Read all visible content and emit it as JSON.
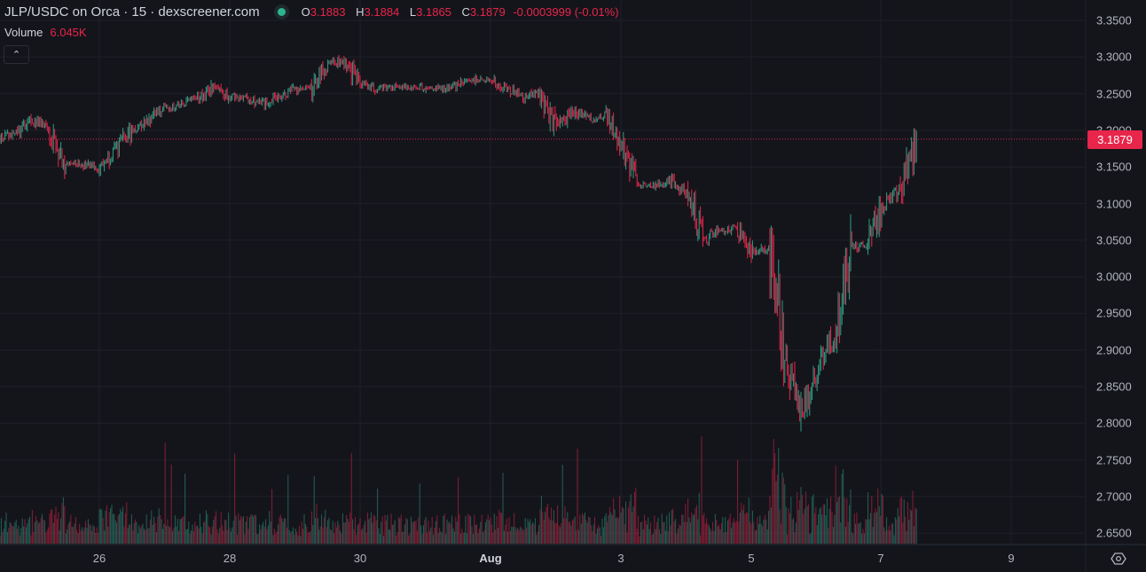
{
  "header": {
    "title": "JLP/USDC on Orca · 15 · dexscreener.com",
    "status_color": "#2db38f",
    "ohlc": {
      "o_label": "O",
      "o": "3.1883",
      "h_label": "H",
      "h": "3.1884",
      "l_label": "L",
      "l": "3.1865",
      "c_label": "C",
      "c": "3.1879",
      "change": "-0.0003999 (-0.01%)"
    },
    "volume_label": "Volume",
    "volume_value": "6.045K",
    "collapse_icon": "chevron-up-icon"
  },
  "colors": {
    "up": "#2f9e86",
    "down": "#e8254a",
    "background": "#14151b",
    "grid": "#1e2029"
  },
  "last_price_label": "3.1879",
  "settings_icon": "gear-icon",
  "chart_data": {
    "type": "candlestick",
    "interval": "15",
    "grid": true,
    "ylim": [
      2.65,
      3.35
    ],
    "y_ticks": [
      "3.3500",
      "3.3000",
      "3.2500",
      "3.2000",
      "3.1500",
      "3.1000",
      "3.0500",
      "3.0000",
      "2.9500",
      "2.9000",
      "2.8500",
      "2.8000",
      "2.7500",
      "2.7000",
      "2.6500"
    ],
    "x_ticks": [
      "26",
      "28",
      "30",
      "Aug",
      "3",
      "5",
      "7",
      "9"
    ],
    "last_price": 3.1879,
    "approx_close_6h": {
      "time": [
        "Jul 24 12:00",
        "Jul 24 18:00",
        "Jul 25 00:00",
        "Jul 25 06:00",
        "Jul 25 12:00",
        "Jul 25 18:00",
        "Jul 26 00:00",
        "Jul 26 06:00",
        "Jul 26 12:00",
        "Jul 26 18:00",
        "Jul 27 00:00",
        "Jul 27 06:00",
        "Jul 27 12:00",
        "Jul 27 18:00",
        "Jul 28 00:00",
        "Jul 28 06:00",
        "Jul 28 12:00",
        "Jul 28 18:00",
        "Jul 29 00:00",
        "Jul 29 06:00",
        "Jul 29 12:00",
        "Jul 29 18:00",
        "Jul 30 00:00",
        "Jul 30 06:00",
        "Jul 30 12:00",
        "Jul 30 18:00",
        "Jul 31 00:00",
        "Jul 31 06:00",
        "Jul 31 12:00",
        "Jul 31 18:00",
        "Aug 1 00:00",
        "Aug 1 06:00",
        "Aug 1 12:00",
        "Aug 1 18:00",
        "Aug 2 00:00",
        "Aug 2 06:00",
        "Aug 2 12:00",
        "Aug 2 18:00",
        "Aug 3 00:00",
        "Aug 3 06:00",
        "Aug 3 12:00",
        "Aug 3 18:00",
        "Aug 4 00:00",
        "Aug 4 06:00",
        "Aug 4 12:00",
        "Aug 4 18:00",
        "Aug 5 00:00",
        "Aug 5 06:00",
        "Aug 5 12:00",
        "Aug 5 18:00",
        "Aug 6 00:00",
        "Aug 6 06:00",
        "Aug 6 12:00",
        "Aug 6 18:00",
        "Aug 7 00:00",
        "Aug 7 06:00",
        "Aug 7 12:00"
      ],
      "close": [
        3.19,
        3.196,
        3.214,
        3.199,
        3.154,
        3.154,
        3.148,
        3.172,
        3.199,
        3.214,
        3.23,
        3.235,
        3.243,
        3.257,
        3.246,
        3.242,
        3.236,
        3.246,
        3.255,
        3.257,
        3.29,
        3.296,
        3.263,
        3.257,
        3.259,
        3.26,
        3.258,
        3.257,
        3.262,
        3.27,
        3.268,
        3.255,
        3.244,
        3.252,
        3.2,
        3.225,
        3.215,
        3.221,
        3.18,
        3.124,
        3.124,
        3.13,
        3.11,
        3.051,
        3.062,
        3.066,
        3.03,
        3.04,
        2.89,
        2.812,
        2.88,
        2.924,
        3.039,
        3.045,
        3.1,
        3.118,
        3.1879
      ]
    },
    "volume_last": "6.045K"
  }
}
